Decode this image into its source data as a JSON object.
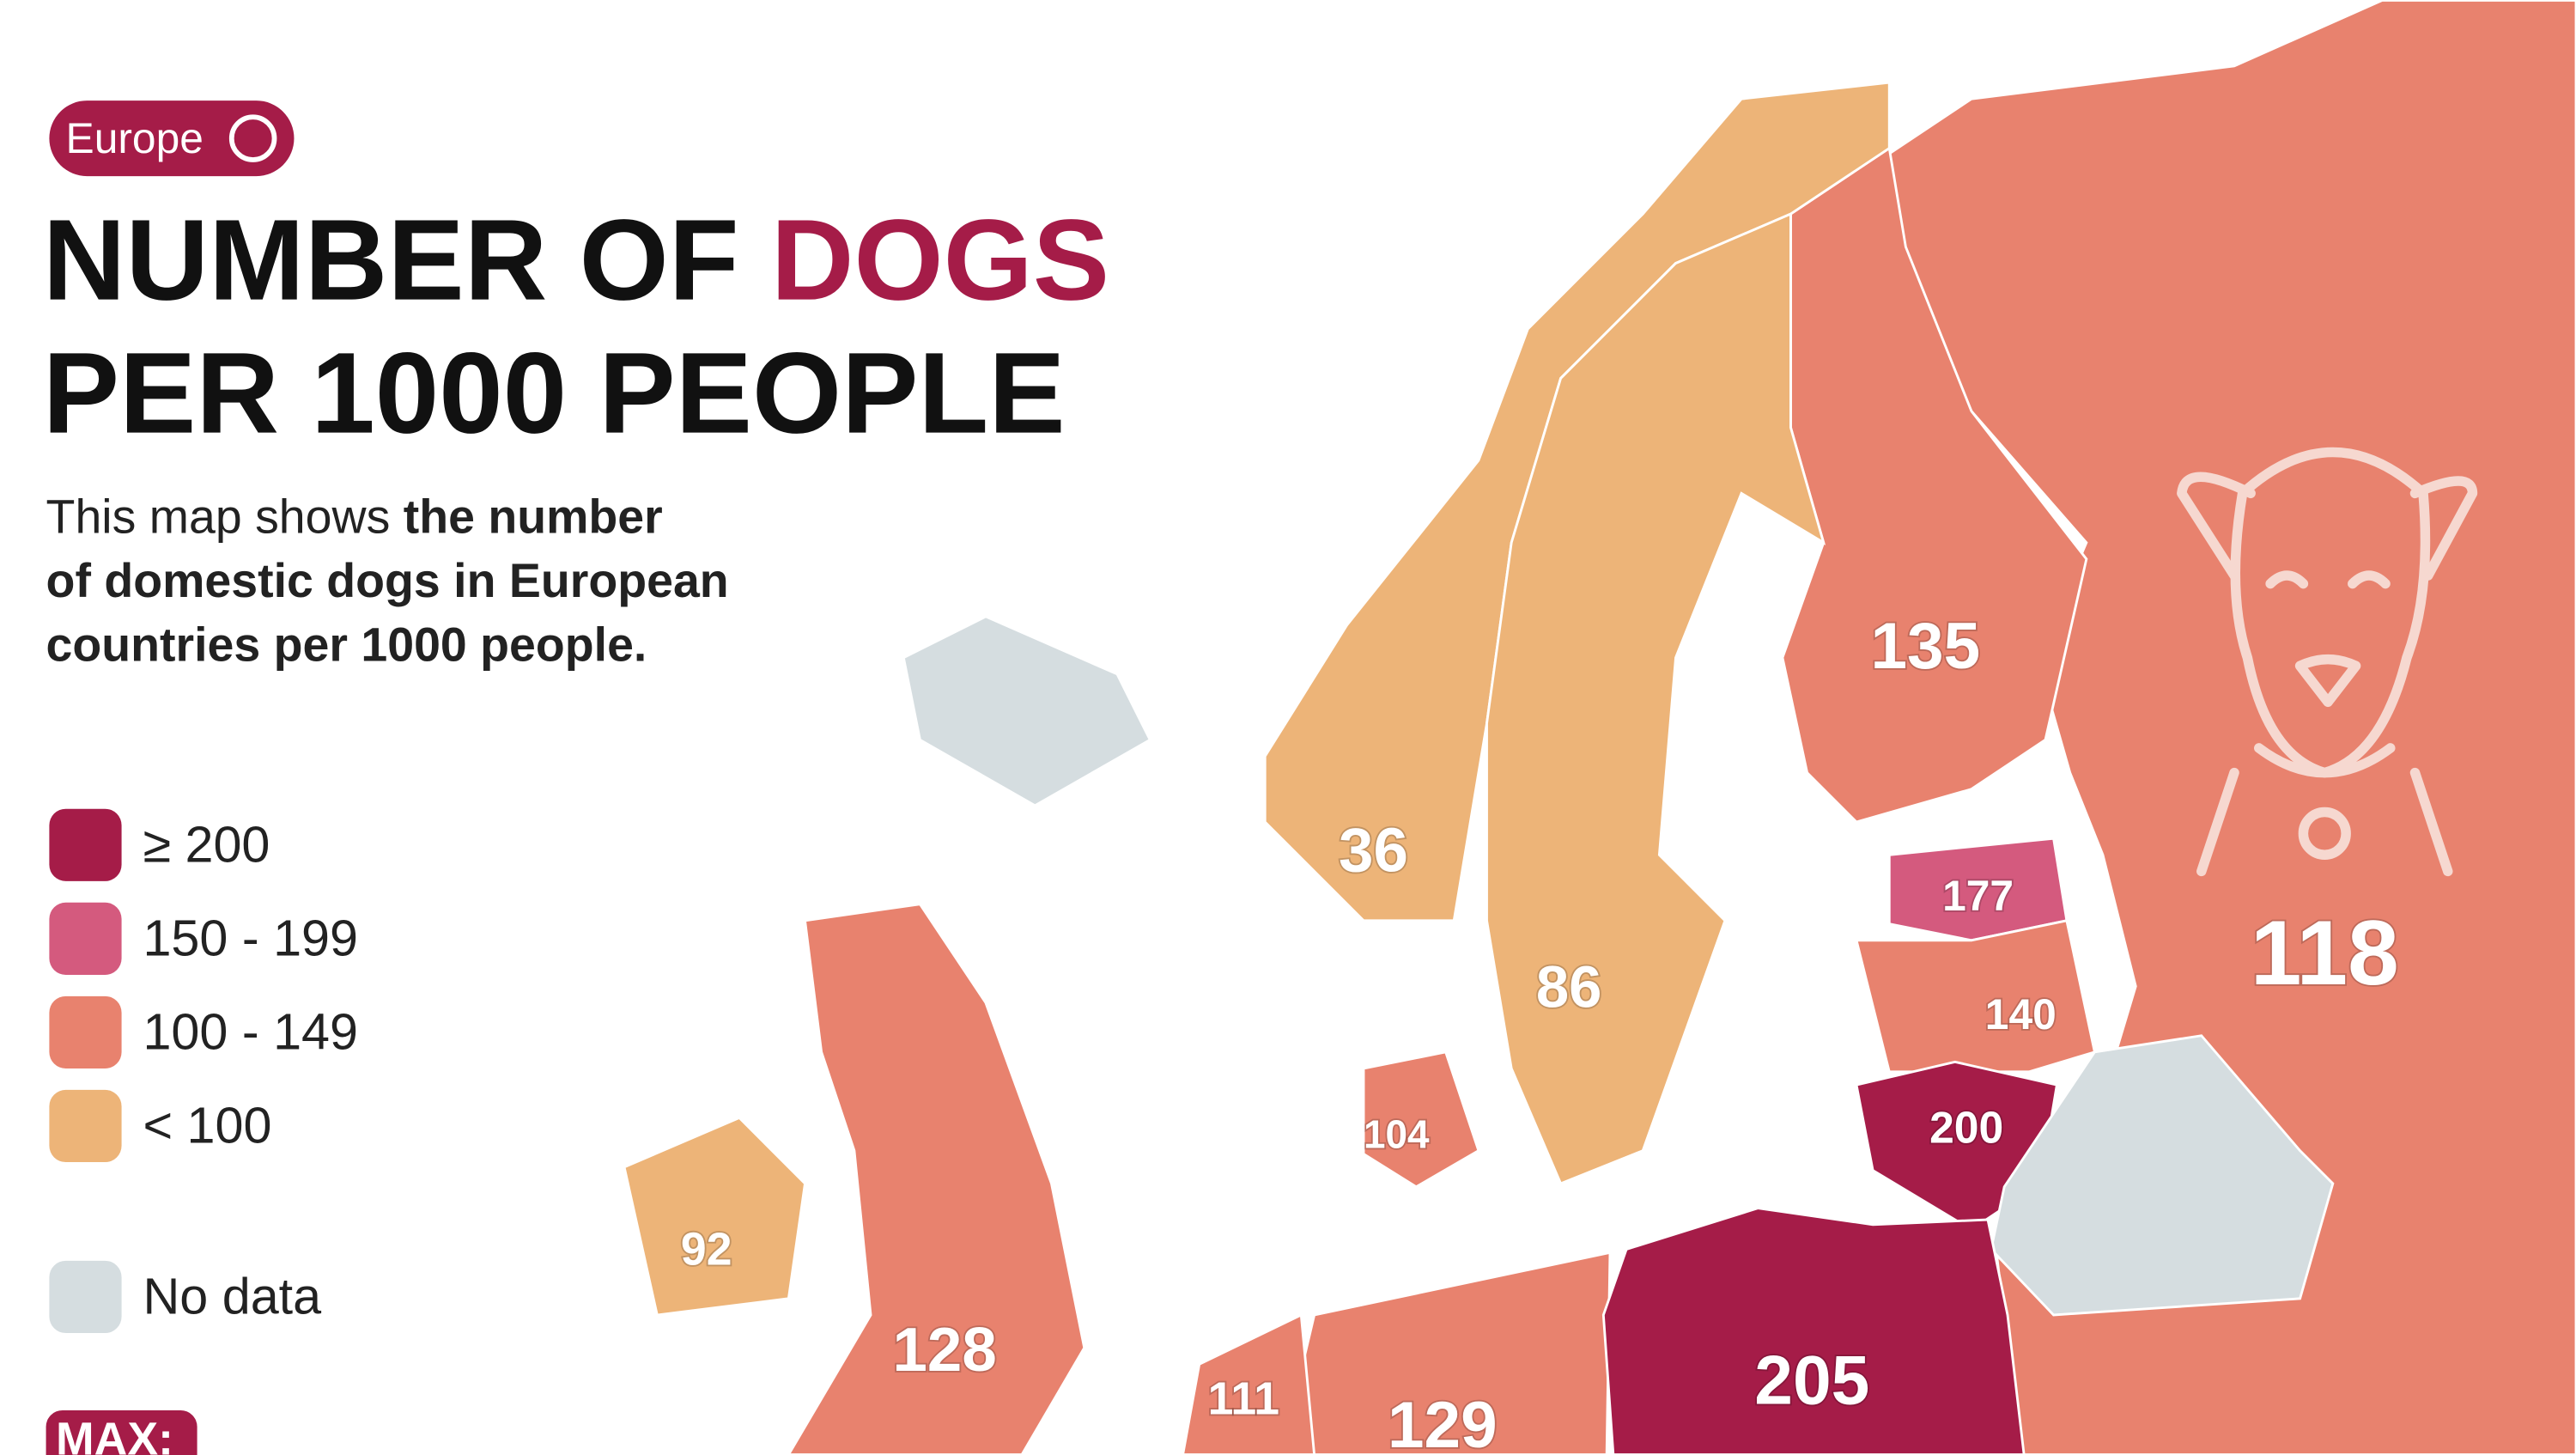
{
  "badge": "Europe",
  "title": {
    "line1_prefix": "NUMBER OF ",
    "line1_highlight": "DOGS",
    "line2": "PER 1000 PEOPLE"
  },
  "description": {
    "light": "This map shows ",
    "bold_lines": [
      "the number",
      "of domestic dogs in European",
      "countries per 1000 people."
    ]
  },
  "legend": [
    {
      "label": "≥ 200",
      "color": "#a51c48"
    },
    {
      "label": "150 - 199",
      "color": "#d45a7e"
    },
    {
      "label": "100 - 149",
      "color": "#e8826e"
    },
    {
      "label": "< 100",
      "color": "#edb478"
    },
    {
      "label": "No data",
      "color": "#d5dde0"
    }
  ],
  "max_label": "MAX:",
  "map": {
    "labels": [
      {
        "value": 135,
        "color": "#e8826e"
      },
      {
        "value": 118,
        "color": "#e8826e"
      },
      {
        "value": 36,
        "color": "#edb478"
      },
      {
        "value": 86,
        "color": "#edb478"
      },
      {
        "value": 177,
        "color": "#d45a7e"
      },
      {
        "value": 140,
        "color": "#e8826e"
      },
      {
        "value": 104,
        "color": "#e8826e"
      },
      {
        "value": 200,
        "color": "#a51c48"
      },
      {
        "value": 92,
        "color": "#edb478"
      },
      {
        "value": 128,
        "color": "#e8826e"
      },
      {
        "value": 205,
        "color": "#a51c48"
      },
      {
        "value": 111,
        "color": "#e8826e"
      },
      {
        "value": 129,
        "color": "#e8826e"
      }
    ]
  }
}
